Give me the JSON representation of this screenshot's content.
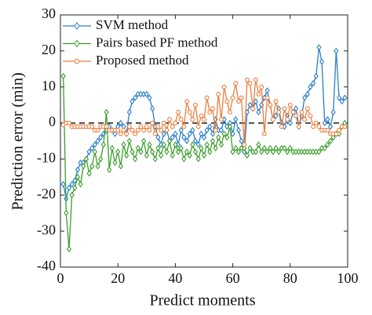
{
  "chart_data": {
    "type": "line",
    "xlabel": "Predict moments",
    "ylabel": "Prediction error (min)",
    "xlim": [
      0,
      100
    ],
    "xticks": [
      0,
      20,
      40,
      60,
      80,
      100
    ],
    "ylim": [
      -40,
      30
    ],
    "yticks": [
      -40,
      -30,
      -20,
      -10,
      0,
      10,
      20,
      30
    ],
    "hline": 0,
    "legend": "upper left",
    "x": [
      1,
      2,
      3,
      4,
      5,
      6,
      7,
      8,
      9,
      10,
      11,
      12,
      13,
      14,
      15,
      16,
      17,
      18,
      19,
      20,
      21,
      22,
      23,
      24,
      25,
      26,
      27,
      28,
      29,
      30,
      31,
      32,
      33,
      34,
      35,
      36,
      37,
      38,
      39,
      40,
      41,
      42,
      43,
      44,
      45,
      46,
      47,
      48,
      49,
      50,
      51,
      52,
      53,
      54,
      55,
      56,
      57,
      58,
      59,
      60,
      61,
      62,
      63,
      64,
      65,
      66,
      67,
      68,
      69,
      70,
      71,
      72,
      73,
      74,
      75,
      76,
      77,
      78,
      79,
      80,
      81,
      82,
      83,
      84,
      85,
      86,
      87,
      88,
      89,
      90,
      91,
      92,
      93,
      94,
      95,
      96,
      97,
      98,
      99
    ],
    "series": [
      {
        "name": "SVM method",
        "color": "#2b7fc6",
        "marker": "diamond",
        "values": [
          -17,
          -21,
          -18,
          -17,
          -16,
          -13,
          -11,
          -11,
          -10,
          -8,
          -7,
          -6,
          -5,
          -4,
          -3,
          -2,
          -1,
          -2,
          -3,
          -1,
          0,
          -1,
          -3,
          3,
          6,
          7,
          8,
          8,
          8,
          8,
          7,
          4,
          -1,
          -4,
          -6,
          -3,
          -2,
          -5,
          -4,
          -3,
          -6,
          -2,
          -4,
          -5,
          -3,
          -2,
          -5,
          -6,
          -3,
          -4,
          -2,
          -1,
          -3,
          1,
          -2,
          -2,
          1,
          -1,
          0,
          -3,
          1,
          -2,
          -5,
          -8,
          3,
          5,
          4,
          6,
          3,
          5,
          7,
          9,
          5,
          1,
          2,
          4,
          0,
          -1,
          2,
          0,
          3,
          4,
          -1,
          2,
          7,
          8,
          10,
          11,
          13,
          21,
          17,
          0,
          1,
          -1,
          3,
          20,
          7,
          6,
          7
        ]
      },
      {
        "name": "Pairs based PF method",
        "color": "#3a9e2a",
        "marker": "diamond",
        "values": [
          13,
          -25,
          -35,
          -20,
          -18,
          -15,
          -17,
          -12,
          -10,
          -14,
          -12,
          -8,
          -12,
          -10,
          -6,
          3,
          -13,
          -7,
          -11,
          -8,
          -12,
          -6,
          -9,
          -5,
          -8,
          -10,
          -7,
          -8,
          -5,
          -9,
          -6,
          -8,
          -10,
          -7,
          -9,
          -6,
          -8,
          -5,
          -9,
          -6,
          -8,
          -7,
          -10,
          -8,
          -9,
          -6,
          -8,
          -10,
          -7,
          -9,
          -6,
          -8,
          -5,
          -7,
          -4,
          -6,
          -3,
          -4,
          -1,
          -8,
          -7,
          -8,
          -7,
          -7,
          -9,
          -7,
          -8,
          -8,
          -6,
          -8,
          -7,
          -8,
          -7,
          -8,
          -7,
          -8,
          -7,
          -7,
          -8,
          -7,
          -8,
          -8,
          -8,
          -8,
          -8,
          -8,
          -8,
          -8,
          -8,
          -8,
          -7,
          -7,
          -6,
          -5,
          -4,
          -3,
          -3,
          -1,
          0
        ]
      },
      {
        "name": "Proposed method",
        "color": "#ee7d3c",
        "marker": "circle",
        "values": [
          -0.5,
          0,
          0,
          -1,
          -1,
          -1,
          -1,
          -1,
          -1,
          -1,
          -1,
          -2,
          -2,
          -1,
          -1,
          -1,
          -2,
          -2,
          -2,
          -2,
          -3,
          -2,
          -3,
          -1,
          -2,
          -3,
          -2,
          -1,
          -2,
          -1,
          -2,
          0,
          -3,
          -1,
          -2,
          0,
          -2,
          1,
          -1,
          0,
          3,
          1,
          -1,
          6,
          3,
          1,
          5,
          -1,
          2,
          1,
          7,
          3,
          4,
          -2,
          8,
          1,
          10,
          6,
          3,
          7,
          11,
          6,
          7,
          -6,
          12,
          11,
          4,
          12,
          8,
          10,
          -3,
          7,
          5,
          1,
          6,
          3,
          -1,
          4,
          1,
          5,
          3,
          2,
          -1,
          3,
          1,
          4,
          2,
          -1,
          0,
          -1,
          -2,
          -2,
          -2,
          -3,
          -3,
          -3,
          -2,
          -1,
          -1
        ]
      }
    ]
  }
}
